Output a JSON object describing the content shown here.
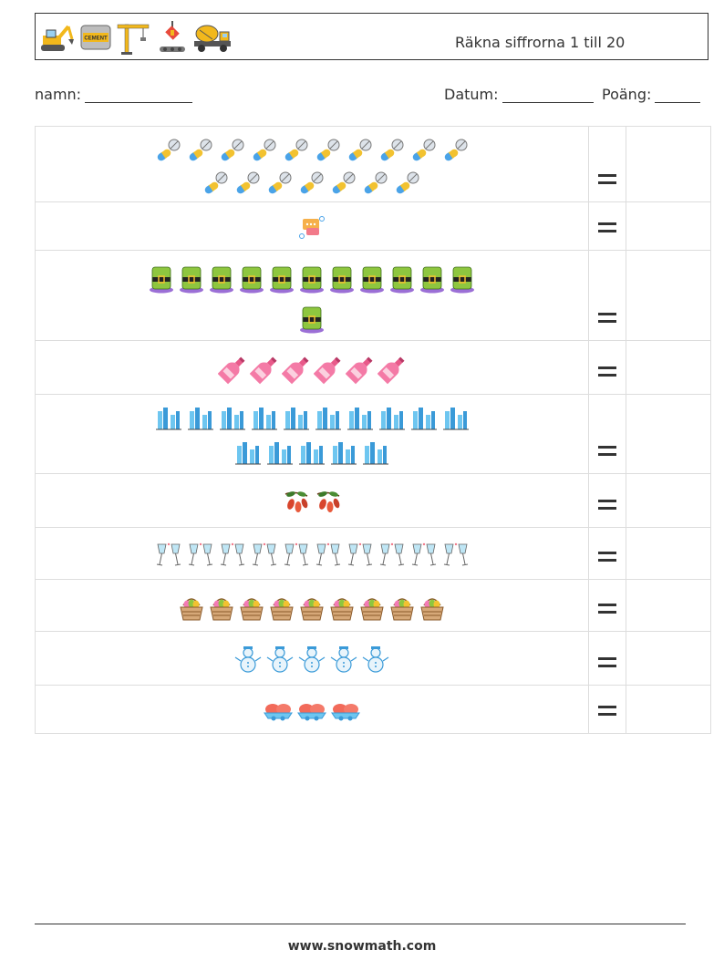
{
  "header": {
    "title": "Räkna siffrorna 1 till 20",
    "icons": [
      "excavator-icon",
      "cement-bag-icon",
      "crane-icon",
      "hook-icon",
      "mixer-truck-icon"
    ],
    "cement_label": "CEMENT"
  },
  "fields": {
    "name_label": "namn:",
    "date_label": "Datum:",
    "score_label": "Poäng:"
  },
  "rows": [
    {
      "icon": "pill-icon",
      "count": 17
    },
    {
      "icon": "chat-icon",
      "count": 1
    },
    {
      "icon": "leprechaun-hat-icon",
      "count": 12
    },
    {
      "icon": "wine-bottle-icon",
      "count": 6
    },
    {
      "icon": "skyline-icon",
      "count": 15
    },
    {
      "icon": "goji-berry-icon",
      "count": 2
    },
    {
      "icon": "champagne-glasses-icon",
      "count": 10
    },
    {
      "icon": "egg-basket-icon",
      "count": 9
    },
    {
      "icon": "snowman-icon",
      "count": 5
    },
    {
      "icon": "baked-goods-icon",
      "count": 3
    }
  ],
  "footer": {
    "url": "www.snowmath.com"
  }
}
